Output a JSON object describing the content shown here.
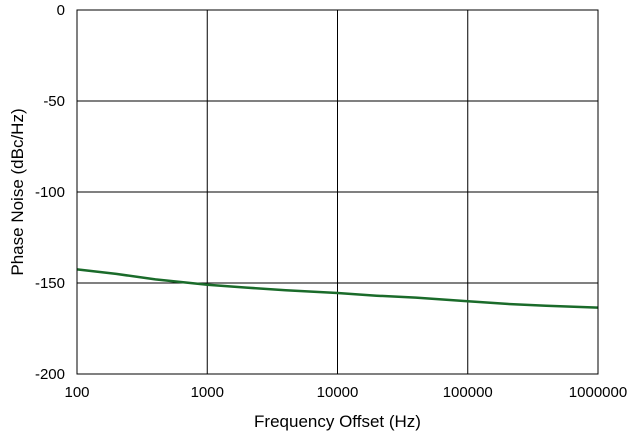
{
  "chart_data": {
    "type": "line",
    "title": "",
    "xlabel": "Frequency Offset (Hz)",
    "ylabel": "Phase Noise (dBc/Hz)",
    "x_scale": "log",
    "xlim": [
      100,
      1000000
    ],
    "ylim": [
      -200,
      0
    ],
    "xticks": [
      100,
      1000,
      10000,
      100000,
      1000000
    ],
    "xtick_labels": [
      "100",
      "1000",
      "10000",
      "100000",
      "1000000"
    ],
    "yticks": [
      0,
      -50,
      -100,
      -150,
      -200
    ],
    "ytick_labels": [
      "0",
      "-50",
      "-100",
      "-150",
      "-200"
    ],
    "grid": true,
    "legend": "none",
    "series": [
      {
        "color": "#1a6b2a",
        "x": [
          100,
          200,
          400,
          1000,
          2000,
          4000,
          10000,
          20000,
          40000,
          100000,
          200000,
          400000,
          1000000
        ],
        "y": [
          -142.5,
          -145,
          -148,
          -151,
          -152.5,
          -154,
          -155.5,
          -157,
          -158,
          -160,
          -161.5,
          -162.5,
          -163.5
        ]
      }
    ]
  }
}
